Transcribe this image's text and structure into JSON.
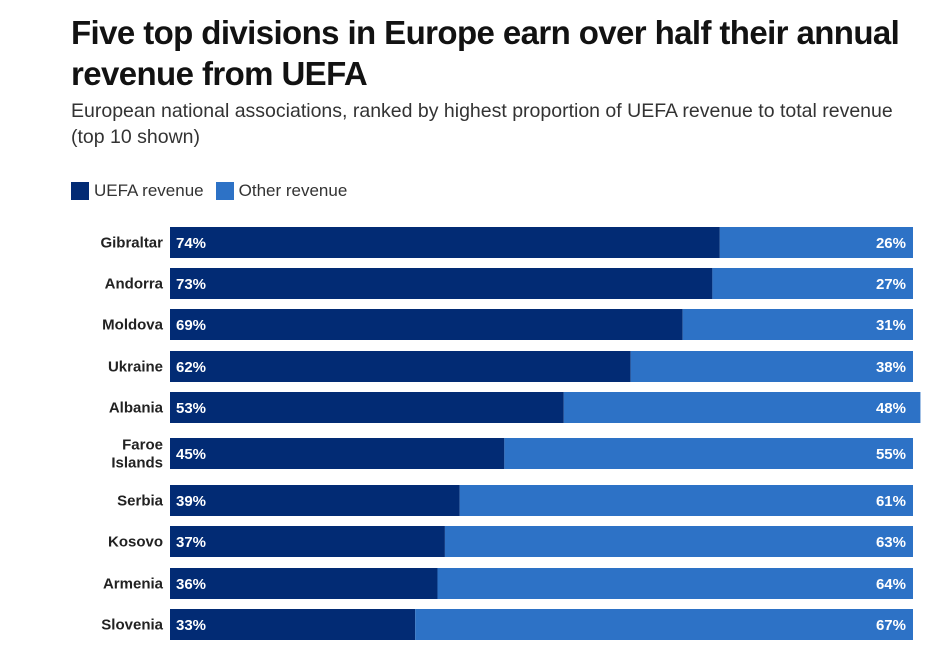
{
  "header": {
    "title": "Five top divisions in Europe earn over half their annual revenue from UEFA",
    "subtitle": "European national associations, ranked by highest proportion of UEFA revenue to total revenue (top 10 shown)"
  },
  "legend": [
    {
      "label": "UEFA revenue",
      "color": "#022b74"
    },
    {
      "label": "Other revenue",
      "color": "#2d72c6"
    }
  ],
  "chart_data": {
    "type": "bar",
    "orientation": "horizontal",
    "stacked": true,
    "normalized": true,
    "title": "Five top divisions in Europe earn over half their annual revenue from UEFA",
    "subtitle": "European national associations, ranked by highest proportion of UEFA revenue to total revenue (top 10 shown)",
    "xlabel": "",
    "ylabel": "",
    "xlim": [
      0,
      100
    ],
    "grid": false,
    "legend_position": "top-left",
    "categories": [
      [
        "Gibraltar"
      ],
      [
        "Andorra"
      ],
      [
        "Moldova"
      ],
      [
        "Ukraine"
      ],
      [
        "Albania"
      ],
      [
        "Faroe",
        "Islands"
      ],
      [
        "Serbia"
      ],
      [
        "Kosovo"
      ],
      [
        "Armenia"
      ],
      [
        "Slovenia"
      ]
    ],
    "series": [
      {
        "name": "UEFA revenue",
        "color": "#022b74",
        "values": [
          74,
          73,
          69,
          62,
          53,
          45,
          39,
          37,
          36,
          33
        ]
      },
      {
        "name": "Other revenue",
        "color": "#2d72c6",
        "values": [
          26,
          27,
          31,
          38,
          48,
          55,
          61,
          63,
          64,
          67
        ]
      }
    ],
    "value_suffix": "%"
  }
}
